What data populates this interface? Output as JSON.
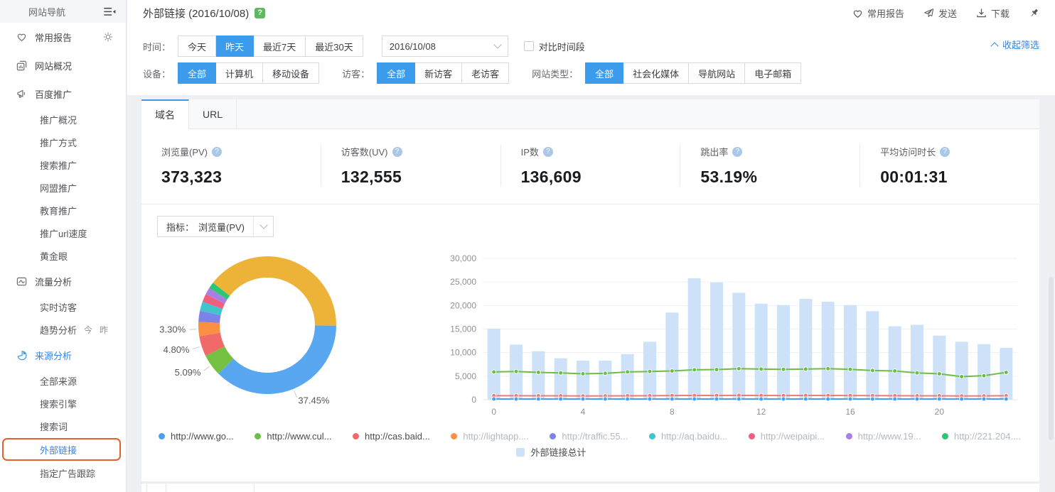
{
  "help_mark": "?",
  "colors": {
    "accent_blue": "#3c9bea",
    "link_blue": "#3385e4",
    "highlight_orange": "#e5602b",
    "help_green": "#5fb760",
    "bar_fill": "#cde2f8"
  },
  "sidebar": {
    "title": "网站导航",
    "items": [
      {
        "label": "常用报告",
        "icon": "heart-icon",
        "level": 0,
        "gear": true
      },
      {
        "label": "网站概况",
        "icon": "site-overview-icon",
        "level": 0
      },
      {
        "label": "百度推广",
        "icon": "megaphone-icon",
        "level": 0
      },
      {
        "label": "推广概况",
        "level": 1
      },
      {
        "label": "推广方式",
        "level": 1
      },
      {
        "label": "搜索推广",
        "level": 1
      },
      {
        "label": "网盟推广",
        "level": 1
      },
      {
        "label": "教育推广",
        "level": 1
      },
      {
        "label": "推广url速度",
        "level": 1
      },
      {
        "label": "黄金眼",
        "level": 1
      },
      {
        "label": "流量分析",
        "icon": "traffic-analysis-icon",
        "level": 0
      },
      {
        "label": "实时访客",
        "level": 1
      },
      {
        "label": "趋势分析",
        "level": 1,
        "badges": [
          "今",
          "昨"
        ]
      },
      {
        "label": "来源分析",
        "icon": "pie-icon",
        "level": 0,
        "active": true
      },
      {
        "label": "全部来源",
        "level": 1
      },
      {
        "label": "搜索引擎",
        "level": 1
      },
      {
        "label": "搜索词",
        "level": 1
      },
      {
        "label": "外部链接",
        "level": 1,
        "selected": true
      },
      {
        "label": "指定广告跟踪",
        "level": 1
      }
    ]
  },
  "header": {
    "title": "外部链接 (2016/10/08)",
    "actions": [
      {
        "label": "常用报告",
        "icon": "heart-icon"
      },
      {
        "label": "发送",
        "icon": "send-icon"
      },
      {
        "label": "下载",
        "icon": "download-icon"
      },
      {
        "label": "",
        "icon": "pin-icon"
      }
    ]
  },
  "filters": {
    "collapse_label": "收起筛选",
    "time": {
      "label": "时间：",
      "options": [
        "今天",
        "昨天",
        "最近7天",
        "最近30天"
      ],
      "active_index": 1,
      "date_value": "2016/10/08",
      "compare_label": "对比时间段",
      "compare_checked": false
    },
    "groups": [
      {
        "label": "设备：",
        "options": [
          "全部",
          "计算机",
          "移动设备"
        ],
        "active_index": 0
      },
      {
        "label": "访客：",
        "options": [
          "全部",
          "新访客",
          "老访客"
        ],
        "active_index": 0
      },
      {
        "label": "网站类型：",
        "options": [
          "全部",
          "社会化媒体",
          "导航网站",
          "电子邮箱"
        ],
        "active_index": 0
      }
    ]
  },
  "tabs": {
    "items": [
      "域名",
      "URL"
    ],
    "active_index": 0
  },
  "metrics": [
    {
      "label": "浏览量(PV)",
      "value": "373,323"
    },
    {
      "label": "访客数(UV)",
      "value": "132,555"
    },
    {
      "label": "IP数",
      "value": "136,609"
    },
    {
      "label": "跳出率",
      "value": "53.19%"
    },
    {
      "label": "平均访问时长",
      "value": "00:01:31"
    }
  ],
  "indicator": {
    "label": "指标：",
    "value": "浏览量(PV)"
  },
  "chart_data": [
    {
      "type": "pie",
      "style": "donut",
      "start_bearing": -52,
      "slices": [
        {
          "name": "",
          "percent": 39.56,
          "color": "#ecb338",
          "label": ""
        },
        {
          "name": "http://www.go...",
          "percent": 37.45,
          "color": "#58a7f0",
          "label": "37.45%"
        },
        {
          "name": "http://www.cul...",
          "percent": 5.09,
          "color": "#74c041",
          "label": "5.09%"
        },
        {
          "name": "http://cas.baid...",
          "percent": 4.8,
          "color": "#f16a6a",
          "label": "4.80%"
        },
        {
          "name": "http://lightapp....",
          "percent": 3.3,
          "color": "#fa9142",
          "label": "3.30%"
        },
        {
          "name": "http://traffic.55...",
          "percent": 2.6,
          "color": "#7d82e8",
          "label": ""
        },
        {
          "name": "http://aq.baidu...",
          "percent": 2.2,
          "color": "#41c4cc",
          "label": ""
        },
        {
          "name": "http://weipaipi...",
          "percent": 1.9,
          "color": "#f0607e",
          "label": ""
        },
        {
          "name": "http://www.19...",
          "percent": 1.6,
          "color": "#a97fe5",
          "label": ""
        },
        {
          "name": "http://221.204....",
          "percent": 1.5,
          "color": "#2ec674",
          "label": ""
        }
      ]
    },
    {
      "type": "bar",
      "x": [
        0,
        1,
        2,
        3,
        4,
        5,
        6,
        7,
        8,
        9,
        10,
        11,
        12,
        13,
        14,
        15,
        16,
        17,
        18,
        19,
        20,
        21,
        22,
        23
      ],
      "x_axis_ticks": [
        0,
        4,
        8,
        12,
        16,
        20
      ],
      "ylim": [
        0,
        30000
      ],
      "y_ticks": [
        0,
        5000,
        10000,
        15000,
        20000,
        25000,
        30000
      ],
      "y_tick_labels": [
        "0",
        "5,000",
        "10,000",
        "15,000",
        "20,000",
        "25,000",
        "30,000"
      ],
      "grid": true,
      "series": [
        {
          "name": "外部链接总计",
          "kind": "bar",
          "color": "#cde2f8",
          "values": [
            15100,
            11700,
            10300,
            8800,
            8300,
            8300,
            9700,
            12300,
            18500,
            25800,
            24900,
            22700,
            20400,
            20100,
            21400,
            20800,
            20100,
            18800,
            15600,
            15900,
            13600,
            12300,
            11800,
            11000
          ]
        },
        {
          "name": "http://www.cul...",
          "kind": "line",
          "color": "#6ebd45",
          "values": [
            5900,
            6000,
            5800,
            5700,
            5500,
            5600,
            5900,
            6000,
            6100,
            6350,
            6400,
            6600,
            6500,
            6450,
            6500,
            6600,
            6450,
            6200,
            6100,
            5700,
            5500,
            4900,
            5100,
            5800
          ]
        },
        {
          "name": "http://cas.baid...",
          "kind": "line",
          "color": "#ef7a78",
          "values": [
            850,
            850,
            820,
            830,
            800,
            810,
            820,
            850,
            880,
            900,
            900,
            920,
            900,
            890,
            900,
            910,
            890,
            870,
            850,
            830,
            820,
            800,
            810,
            850
          ]
        },
        {
          "name": "http://www.go...",
          "kind": "line",
          "color": "#4aa0ee",
          "values": [
            150,
            150,
            150,
            150,
            150,
            150,
            150,
            150,
            150,
            150,
            150,
            150,
            150,
            150,
            150,
            150,
            150,
            150,
            150,
            150,
            150,
            150,
            150,
            150
          ]
        }
      ]
    }
  ],
  "legend": {
    "items": [
      {
        "name": "http://www.go...",
        "color": "#4aa0ee",
        "muted": false
      },
      {
        "name": "http://www.cul...",
        "color": "#6ebd45",
        "muted": false
      },
      {
        "name": "http://cas.baid...",
        "color": "#f16a6a",
        "muted": false
      },
      {
        "name": "http://lightapp....",
        "color": "#fa9142",
        "muted": true
      },
      {
        "name": "http://traffic.55...",
        "color": "#7d82e8",
        "muted": true
      },
      {
        "name": "http://aq.baidu...",
        "color": "#41c4cc",
        "muted": true
      },
      {
        "name": "http://weipaipi...",
        "color": "#f0607e",
        "muted": true
      },
      {
        "name": "http://www.19...",
        "color": "#a97fe5",
        "muted": true
      },
      {
        "name": "http://221.204....",
        "color": "#2ec674",
        "muted": true
      }
    ],
    "total": {
      "name": "外部链接总计",
      "color": "#cde2f8"
    }
  }
}
